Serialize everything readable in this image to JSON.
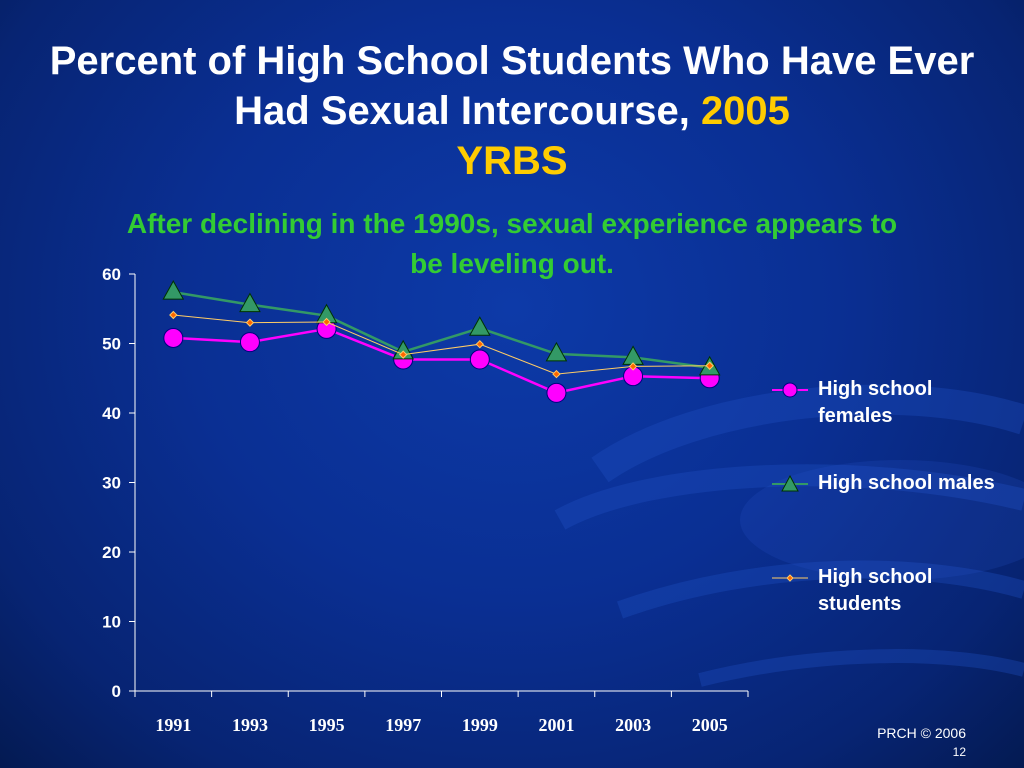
{
  "slide": {
    "title_main": "Percent of High School Students Who Have Ever Had Sexual Intercourse,",
    "title_year": "2005",
    "title_source": "YRBS",
    "subtitle": "After declining in the 1990s, sexual experience appears to be leveling out.",
    "credit": "PRCH © 2006",
    "page_number": "12"
  },
  "colors": {
    "background": "#0a2f93",
    "title": "#ffffff",
    "title_accent": "#ffcc00",
    "subtitle": "#33cc33",
    "females": "#ff00ff",
    "males": "#339966",
    "students": "#ffcc66"
  },
  "chart_data": {
    "type": "line",
    "x": [
      "1991",
      "1993",
      "1995",
      "1997",
      "1999",
      "2001",
      "2003",
      "2005"
    ],
    "ylim": [
      0,
      60
    ],
    "yticks": [
      0,
      10,
      20,
      30,
      40,
      50,
      60
    ],
    "grid": false,
    "legend_position": "right",
    "series": [
      {
        "name": "High school females",
        "marker": "circle",
        "color": "#ff00ff",
        "values": [
          50.8,
          50.2,
          52.1,
          47.7,
          47.7,
          42.9,
          45.3,
          45.0
        ]
      },
      {
        "name": "High school males",
        "marker": "triangle",
        "color": "#339966",
        "values": [
          57.4,
          55.6,
          54.0,
          48.8,
          52.2,
          48.5,
          48.0,
          46.5
        ]
      },
      {
        "name": "High school students",
        "marker": "diamond",
        "color": "#ffcc66",
        "values": [
          54.1,
          53.0,
          53.1,
          48.4,
          49.9,
          45.6,
          46.7,
          46.8
        ]
      }
    ]
  }
}
